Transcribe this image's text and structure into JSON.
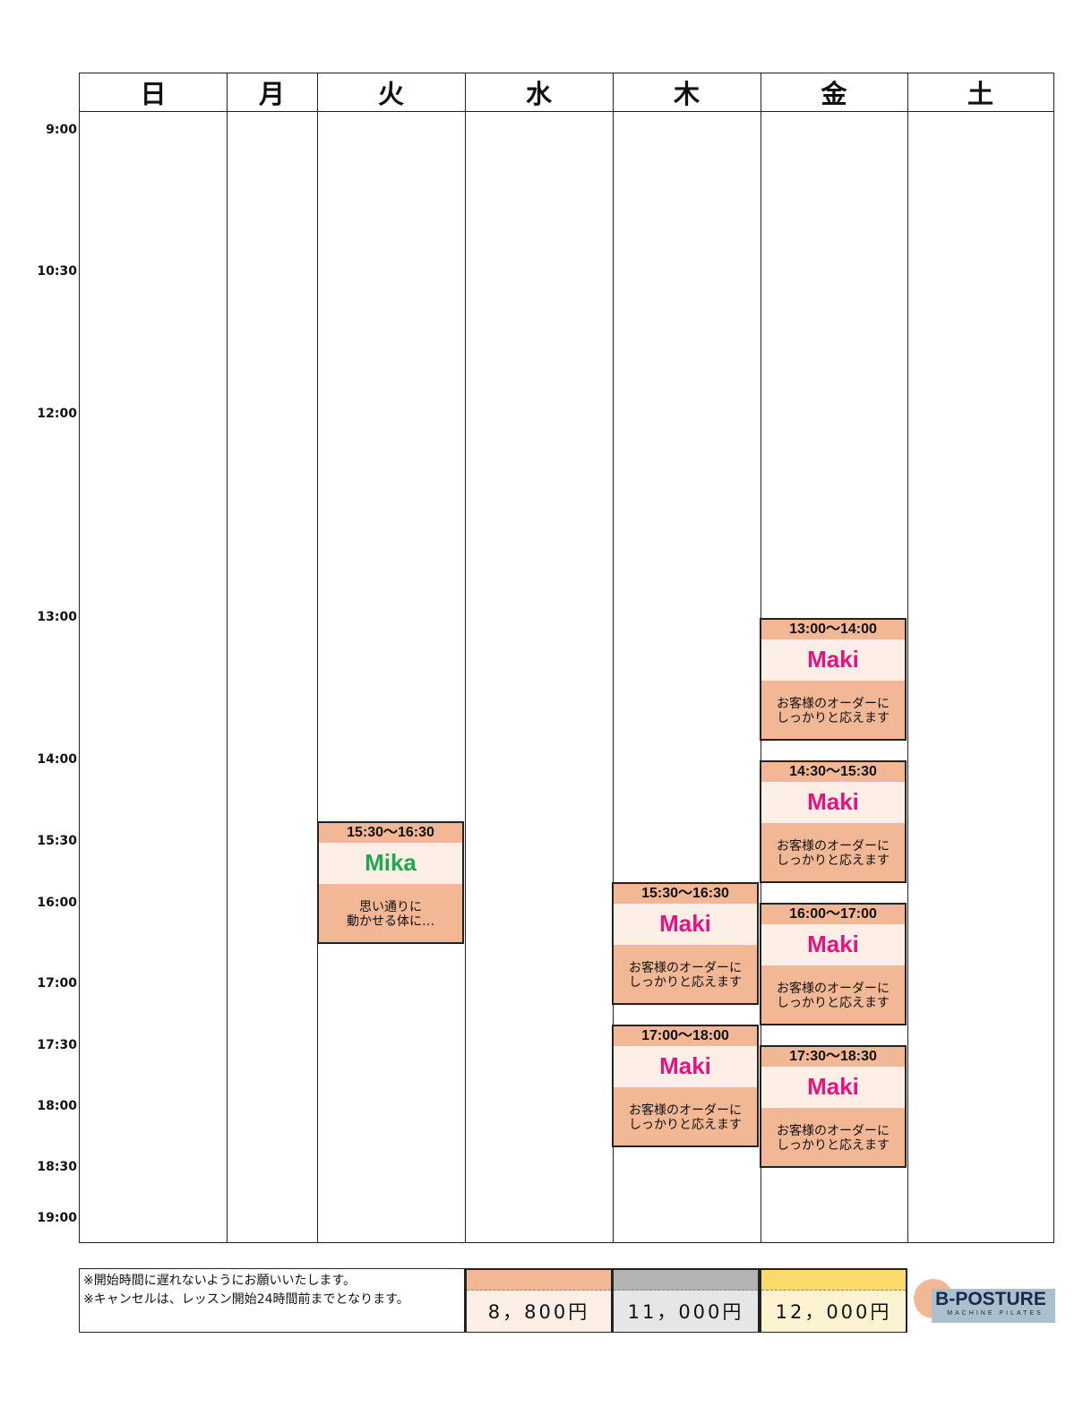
{
  "days": [
    "日",
    "月",
    "火",
    "水",
    "木",
    "金",
    "土"
  ],
  "times": [
    "9:00",
    "10:30",
    "12:00",
    "13:00",
    "14:00",
    "15:30",
    "16:00",
    "17:00",
    "17:30",
    "18:00",
    "18:30",
    "19:00"
  ],
  "lessons": [
    {
      "time": "15:30～16:30",
      "instructor": "Mika",
      "description": "思い通りに\n動かせる体に…",
      "name_color": "#1fa84f"
    },
    {
      "time": "15:30～16:30",
      "instructor": "Maki",
      "description": "お客様のオーダーに\nしっかりと応えます",
      "name_color": "#e4137f"
    },
    {
      "time": "17:00～18:00",
      "instructor": "Maki",
      "description": "お客様のオーダーに\nしっかりと応えます",
      "name_color": "#e4137f"
    },
    {
      "time": "13:00～14:00",
      "instructor": "Maki",
      "description": "お客様のオーダーに\nしっかりと応えます",
      "name_color": "#e4137f"
    },
    {
      "time": "14:30～15:30",
      "instructor": "Maki",
      "description": "お客様のオーダーに\nしっかりと応えます",
      "name_color": "#e4137f"
    },
    {
      "time": "16:00～17:00",
      "instructor": "Maki",
      "description": "お客様のオーダーに\nしっかりと応えます",
      "name_color": "#e4137f"
    },
    {
      "time": "17:30～18:30",
      "instructor": "Maki",
      "description": "お客様のオーダーに\nしっかりと応えます",
      "name_color": "#e4137f"
    }
  ],
  "notes": [
    "※開始時間に遅れないようにお願いいたします。",
    "※キャンセルは、レッスン開始24時間前までとなります。"
  ],
  "prices": [
    {
      "value": "8，800円",
      "color_top": "#f2b795",
      "color_bottom": "#fdeee6"
    },
    {
      "value": "11，000円",
      "color_top": "#b3b3b3",
      "color_bottom": "#e6e6e6"
    },
    {
      "value": "12，000円",
      "color_top": "#fbd96b",
      "color_bottom": "#fef3d0"
    }
  ],
  "logo": {
    "main": "B-POSTURE",
    "sub": "MACHINE PILATES"
  }
}
